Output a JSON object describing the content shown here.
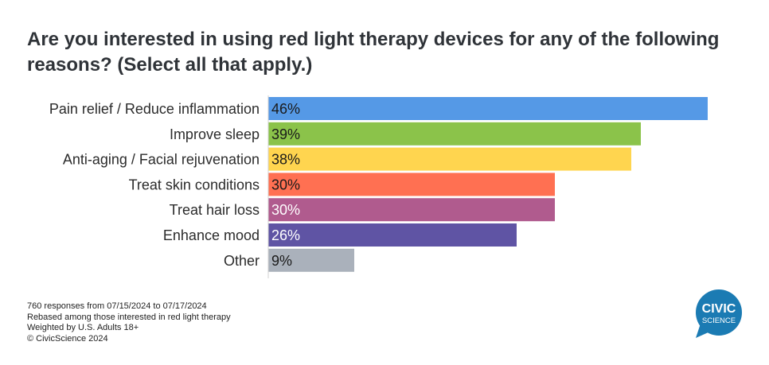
{
  "title": "Are you interested in using red light therapy devices for any of the following reasons? (Select all that apply.)",
  "chart_data": {
    "type": "bar",
    "orientation": "horizontal",
    "categories": [
      "Pain relief / Reduce inflammation",
      "Improve sleep",
      "Anti-aging / Facial rejuvenation",
      "Treat skin conditions",
      "Treat hair loss",
      "Enhance mood",
      "Other"
    ],
    "values": [
      46,
      39,
      38,
      30,
      30,
      26,
      9
    ],
    "data_labels": [
      "46%",
      "39%",
      "38%",
      "30%",
      "30%",
      "26%",
      "9%"
    ],
    "colors": [
      "#5599e6",
      "#8bc34a",
      "#ffd54f",
      "#ff7052",
      "#b05b8e",
      "#5f54a4",
      "#aab1bb"
    ],
    "label_colors": [
      "#1a1a1a",
      "#1a1a1a",
      "#1a1a1a",
      "#1a1a1a",
      "#ffffff",
      "#ffffff",
      "#1a1a1a"
    ],
    "xlim": [
      0,
      46
    ],
    "grid": false,
    "legend": "none"
  },
  "footer": {
    "lines": [
      "760 responses from 07/15/2024 to 07/17/2024",
      "Rebased among those interested in red light therapy",
      "Weighted by U.S. Adults 18+",
      "© CivicScience 2024"
    ]
  },
  "logo": {
    "line1": "CIVIC",
    "line2": "SCIENCE",
    "color": "#1b7bb3"
  }
}
